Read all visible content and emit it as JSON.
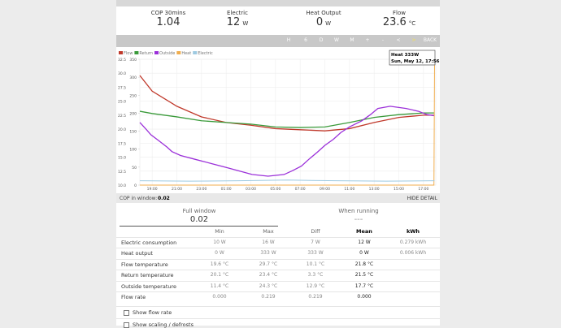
{
  "stats": [
    {
      "label": "COP 30mins",
      "value": "1.04"
    },
    {
      "label": "Electric",
      "value": "12",
      "unit": "W"
    },
    {
      "label": "Heat Output",
      "value": "0",
      "unit": "W"
    },
    {
      "label": "Flow",
      "value": "23.6",
      "unit": "°C"
    }
  ],
  "toolbar": [
    "H",
    "6",
    "D",
    "W",
    "M",
    "+",
    "-",
    "<",
    ">",
    "BACK"
  ],
  "chart_data": {
    "type": "line",
    "grid": true,
    "xlim": [
      18,
      42
    ],
    "xticks": [
      {
        "value": 19,
        "label": "19:00"
      },
      {
        "value": 21,
        "label": "21:00"
      },
      {
        "value": 23,
        "label": "23:00"
      },
      {
        "value": 25,
        "label": "01:00"
      },
      {
        "value": 27,
        "label": "03:00"
      },
      {
        "value": 29,
        "label": "05:00"
      },
      {
        "value": 31,
        "label": "07:00"
      },
      {
        "value": 33,
        "label": "09:00"
      },
      {
        "value": 35,
        "label": "11:00"
      },
      {
        "value": 37,
        "label": "13:00"
      },
      {
        "value": 39,
        "label": "15:00"
      },
      {
        "value": 41,
        "label": "17:00"
      }
    ],
    "ylim": [
      10,
      32.5
    ],
    "yticks": [
      {
        "value": 10,
        "label": "10.0"
      },
      {
        "value": 12.5,
        "label": "12.5"
      },
      {
        "value": 15,
        "label": "15.0"
      },
      {
        "value": 17.5,
        "label": "17.5"
      },
      {
        "value": 20,
        "label": "20.0"
      },
      {
        "value": 22.5,
        "label": "22.5"
      },
      {
        "value": 25,
        "label": "25.0"
      },
      {
        "value": 27.5,
        "label": "27.5"
      },
      {
        "value": 30,
        "label": "30.0"
      },
      {
        "value": 32.5,
        "label": "32.5"
      }
    ],
    "y2lim": [
      0,
      350
    ],
    "y2ticks": [
      0,
      50,
      100,
      150,
      200,
      250,
      300,
      350
    ],
    "series": [
      {
        "name": "Flow",
        "color": "#c0392b",
        "x": [
          18,
          19,
          21,
          23,
          25,
          27,
          29,
          31,
          33,
          35,
          37,
          39,
          41,
          41.9
        ],
        "values": [
          29.6,
          26.8,
          24.1,
          22.2,
          21.2,
          20.7,
          20.1,
          19.9,
          19.7,
          20.1,
          21.2,
          22.1,
          22.5,
          22.5
        ]
      },
      {
        "name": "Return",
        "color": "#3a9a3a",
        "x": [
          18,
          19,
          21,
          23,
          25,
          27,
          29,
          31,
          33,
          35,
          37,
          39,
          41,
          41.9
        ],
        "values": [
          23.2,
          22.8,
          22.2,
          21.5,
          21.2,
          20.9,
          20.4,
          20.3,
          20.4,
          21.2,
          22.1,
          22.6,
          22.9,
          22.9
        ]
      },
      {
        "name": "Outside",
        "color": "#9b30d9",
        "x": [
          18,
          18.5,
          18.9,
          19.5,
          20.2,
          20.6,
          21.3,
          22.5,
          23.9,
          25.1,
          27.1,
          28.4,
          29.7,
          30.4,
          31.1,
          31.7,
          32.4,
          33,
          33.7,
          34.3,
          35,
          36,
          36.7,
          37.3,
          38.3,
          39.6,
          40.6,
          41.3,
          41.9
        ],
        "values": [
          21.2,
          20,
          19,
          18,
          16.8,
          16,
          15.3,
          14.6,
          13.8,
          13.1,
          11.9,
          11.6,
          11.9,
          12.6,
          13.4,
          14.6,
          15.9,
          17.1,
          18.2,
          19.4,
          20.4,
          21.5,
          22.6,
          23.7,
          24.1,
          23.7,
          23.2,
          22.6,
          22.4
        ]
      },
      {
        "name": "Heat",
        "color": "#f0ad4e",
        "axis": "y2",
        "x": [
          18,
          30,
          41.85,
          41.9
        ],
        "values": [
          0,
          0,
          0,
          333
        ]
      },
      {
        "name": "Electric",
        "color": "#9ecae1",
        "axis": "y2",
        "x": [
          18,
          22,
          26,
          30,
          34,
          38,
          41.9
        ],
        "values": [
          12,
          11,
          12,
          14,
          12,
          11,
          12
        ]
      }
    ],
    "tooltip": {
      "title": "Heat 333W",
      "date": "Sun, May 12, 17:56"
    }
  },
  "cop_window": {
    "label": "COP in window:",
    "value": "0.02"
  },
  "hide_detail": "HIDE DETAIL",
  "summary": [
    {
      "label": "Full window",
      "value": "0.02"
    },
    {
      "label": "When running",
      "value": "---"
    }
  ],
  "table": {
    "header": [
      "Min",
      "Max",
      "Diff",
      "Mean",
      "kWh"
    ],
    "rows": [
      [
        "Electric consumption",
        "10 W",
        "16 W",
        "7 W",
        "12 W",
        "0.279 kWh"
      ],
      [
        "Heat output",
        "0 W",
        "333 W",
        "333 W",
        "0 W",
        "0.006 kWh"
      ],
      [
        "Flow temperature",
        "19.6 °C",
        "29.7 °C",
        "10.1 °C",
        "21.8 °C"
      ],
      [
        "Return temperature",
        "20.1 °C",
        "23.4 °C",
        "3.3 °C",
        "21.5 °C"
      ],
      [
        "Outside temperature",
        "11.4 °C",
        "24.3 °C",
        "12.9 °C",
        "17.7 °C"
      ],
      [
        "Flow rate",
        "0.000",
        "0.219",
        "0.219",
        "0.000"
      ]
    ]
  },
  "options": [
    "Show flow rate",
    "Show scaling / defrosts"
  ]
}
